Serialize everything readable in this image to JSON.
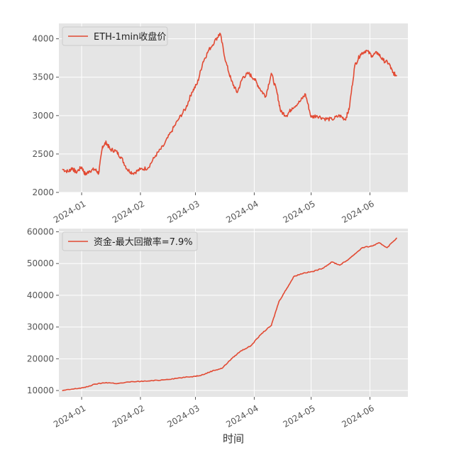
{
  "chart_data": [
    {
      "type": "line",
      "title": "",
      "xlabel": "",
      "ylabel": "",
      "xlim": [
        "2023-12-20",
        "2024-06-21"
      ],
      "ylim": [
        2000,
        4200
      ],
      "yticks": [
        2000,
        2500,
        3000,
        3500,
        4000
      ],
      "xticks": [
        "2024-01",
        "2024-02",
        "2024-03",
        "2024-04",
        "2024-05",
        "2024-06"
      ],
      "grid": true,
      "legend": "top-left",
      "series": [
        {
          "name": "ETH-1min收盘价",
          "color": "#E24A33",
          "x": [
            "2023-12-22",
            "2023-12-25",
            "2023-12-27",
            "2023-12-29",
            "2024-01-01",
            "2024-01-03",
            "2024-01-05",
            "2024-01-08",
            "2024-01-10",
            "2024-01-12",
            "2024-01-14",
            "2024-01-16",
            "2024-01-19",
            "2024-01-22",
            "2024-01-25",
            "2024-01-28",
            "2024-02-01",
            "2024-02-05",
            "2024-02-09",
            "2024-02-13",
            "2024-02-17",
            "2024-02-21",
            "2024-02-25",
            "2024-02-28",
            "2024-03-02",
            "2024-03-05",
            "2024-03-08",
            "2024-03-12",
            "2024-03-14",
            "2024-03-17",
            "2024-03-20",
            "2024-03-23",
            "2024-03-26",
            "2024-03-29",
            "2024-04-01",
            "2024-04-04",
            "2024-04-07",
            "2024-04-10",
            "2024-04-13",
            "2024-04-15",
            "2024-04-18",
            "2024-04-21",
            "2024-04-25",
            "2024-04-28",
            "2024-05-01",
            "2024-05-04",
            "2024-05-08",
            "2024-05-12",
            "2024-05-16",
            "2024-05-19",
            "2024-05-21",
            "2024-05-24",
            "2024-05-27",
            "2024-05-30",
            "2024-06-02",
            "2024-06-05",
            "2024-06-08",
            "2024-06-11",
            "2024-06-13",
            "2024-06-15"
          ],
          "y": [
            2300,
            2270,
            2320,
            2260,
            2330,
            2230,
            2280,
            2300,
            2250,
            2600,
            2650,
            2560,
            2540,
            2450,
            2300,
            2250,
            2300,
            2320,
            2480,
            2600,
            2780,
            2950,
            3100,
            3300,
            3420,
            3700,
            3850,
            4000,
            4070,
            3700,
            3450,
            3300,
            3500,
            3550,
            3480,
            3350,
            3250,
            3550,
            3300,
            3050,
            3000,
            3100,
            3180,
            3280,
            2980,
            3000,
            2960,
            2950,
            3000,
            2950,
            3080,
            3650,
            3800,
            3850,
            3780,
            3820,
            3720,
            3680,
            3560,
            3520
          ]
        }
      ]
    },
    {
      "type": "line",
      "title": "",
      "xlabel": "时间",
      "ylabel": "",
      "xlim": [
        "2023-12-20",
        "2024-06-21"
      ],
      "ylim": [
        8000,
        61000
      ],
      "yticks": [
        10000,
        20000,
        30000,
        40000,
        50000,
        60000
      ],
      "xticks": [
        "2024-01",
        "2024-02",
        "2024-03",
        "2024-04",
        "2024-05",
        "2024-06"
      ],
      "grid": true,
      "legend": "top-left",
      "series": [
        {
          "name": "资金-最大回撤率=7.9%",
          "color": "#E24A33",
          "x": [
            "2023-12-22",
            "2023-12-28",
            "2024-01-03",
            "2024-01-08",
            "2024-01-14",
            "2024-01-20",
            "2024-01-28",
            "2024-02-06",
            "2024-02-15",
            "2024-02-22",
            "2024-03-01",
            "2024-03-05",
            "2024-03-10",
            "2024-03-15",
            "2024-03-20",
            "2024-03-25",
            "2024-03-30",
            "2024-04-05",
            "2024-04-10",
            "2024-04-14",
            "2024-04-18",
            "2024-04-22",
            "2024-04-27",
            "2024-05-02",
            "2024-05-07",
            "2024-05-12",
            "2024-05-16",
            "2024-05-20",
            "2024-05-24",
            "2024-05-28",
            "2024-06-02",
            "2024-06-06",
            "2024-06-10",
            "2024-06-15"
          ],
          "y": [
            10000,
            10500,
            11000,
            12000,
            12500,
            12200,
            12800,
            13000,
            13500,
            14000,
            14500,
            15000,
            16200,
            17000,
            20000,
            22500,
            24000,
            28000,
            30500,
            38000,
            42000,
            46000,
            47000,
            47500,
            48500,
            50500,
            49500,
            51000,
            53000,
            55000,
            55500,
            56500,
            55000,
            58000
          ]
        }
      ]
    }
  ]
}
